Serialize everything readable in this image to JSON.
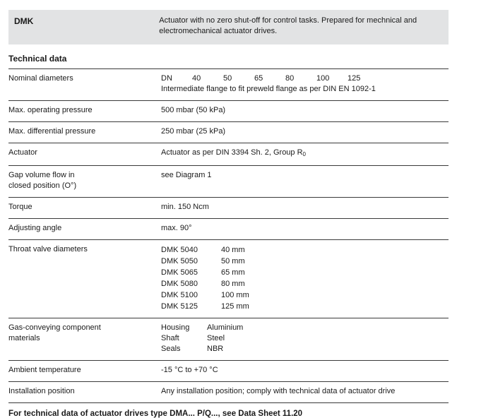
{
  "page": {
    "header": {
      "product": "DMK",
      "description": "Actuator with no zero shut-off for control tasks. Prepared for mechnical and electromechanical actuator drives."
    },
    "section_title": "Technical data",
    "rows": [
      {
        "label": "Nominal diameters",
        "dn": [
          "DN",
          "40",
          "50",
          "65",
          "80",
          "100",
          "125"
        ],
        "note": "Intermediate flange to fit preweld flange as per DIN EN 1092-1"
      },
      {
        "label": "Max. operating pressure",
        "value": "500 mbar (50 kPa)"
      },
      {
        "label": "Max. differential pressure",
        "value": "250 mbar (25 kPa)"
      },
      {
        "label": "Actuator",
        "value_main": "Actuator as per DIN 3394 Sh. 2, Group R",
        "value_sub": "0"
      },
      {
        "label": "Gap volume flow in",
        "label2": "closed position (O°)",
        "value": "see Diagram 1"
      },
      {
        "label": "Torque",
        "value": "min. 150 Ncm"
      },
      {
        "label": "Adjusting angle",
        "value": "max. 90°"
      },
      {
        "label": "Throat valve diameters",
        "items": [
          {
            "name": "DMK 5040",
            "value": "40 mm"
          },
          {
            "name": "DMK 5050",
            "value": "50 mm"
          },
          {
            "name": "DMK 5065",
            "value": "65 mm"
          },
          {
            "name": "DMK 5080",
            "value": "80 mm"
          },
          {
            "name": "DMK 5100",
            "value": "100 mm"
          },
          {
            "name": "DMK 5125",
            "value": "125 mm"
          }
        ]
      },
      {
        "label": "Gas-conveying component",
        "label2": "materials",
        "items": [
          {
            "name": "Housing",
            "value": "Aluminium"
          },
          {
            "name": "Shaft",
            "value": "Steel"
          },
          {
            "name": "Seals",
            "value": "NBR"
          }
        ]
      },
      {
        "label": "Ambient temperature",
        "value": "-15 °C to +70 °C"
      },
      {
        "label": "Installation position",
        "value": "Any installation position; comply with technical data of actuator drive"
      }
    ],
    "footer": "For technical data of actuator drives type DMA... P/Q..., see Data Sheet 11.20",
    "colors": {
      "header_bg": "#e2e3e4",
      "rule": "#3a3a3a",
      "text": "#1a1a1a"
    }
  }
}
